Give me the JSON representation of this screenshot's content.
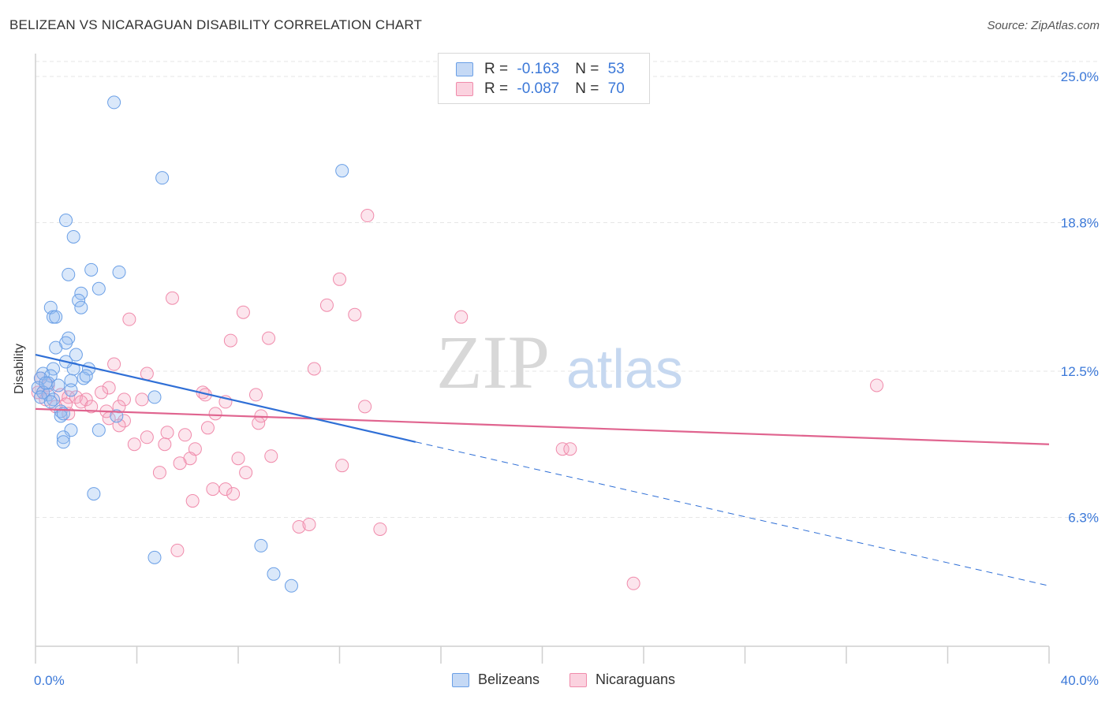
{
  "title": "BELIZEAN VS NICARAGUAN DISABILITY CORRELATION CHART",
  "source": "Source: ZipAtlas.com",
  "watermark": {
    "zip": "ZIP",
    "atlas": "atlas"
  },
  "legend": [
    {
      "r_label": "R = ",
      "r_value": "-0.163",
      "n_label": "N = ",
      "n_value": "53",
      "color": "#6a9fe6"
    },
    {
      "r_label": "R = ",
      "r_value": "-0.087",
      "n_label": "N = ",
      "n_value": "70",
      "color": "#f08bab"
    }
  ],
  "chart_data": {
    "type": "scatter",
    "title": "BELIZEAN VS NICARAGUAN DISABILITY CORRELATION CHART",
    "ylabel": "Disability",
    "xlim": [
      0,
      40
    ],
    "ylim": [
      0,
      25
    ],
    "x_tick_labels": [
      "0.0%",
      "40.0%"
    ],
    "y_ticks": [
      6.3,
      12.5,
      18.8,
      25.0
    ],
    "y_tick_labels": [
      "6.3%",
      "12.5%",
      "18.8%",
      "25.0%"
    ],
    "grid": true,
    "legend_position": "top-center",
    "series": [
      {
        "name": "Belizeans",
        "color": "#6a9fe6",
        "line_color": "#2f6fd6",
        "trend": {
          "x": [
            0,
            15
          ],
          "y": [
            13.2,
            9.5
          ],
          "dashed_to": [
            40,
            3.4
          ]
        },
        "points": [
          [
            3.1,
            23.9
          ],
          [
            5.0,
            20.7
          ],
          [
            12.1,
            21.0
          ],
          [
            1.2,
            18.9
          ],
          [
            1.5,
            18.2
          ],
          [
            1.3,
            16.6
          ],
          [
            2.2,
            16.8
          ],
          [
            3.3,
            16.7
          ],
          [
            1.8,
            15.8
          ],
          [
            2.5,
            16.0
          ],
          [
            1.7,
            15.5
          ],
          [
            1.8,
            15.2
          ],
          [
            0.6,
            15.2
          ],
          [
            0.7,
            14.8
          ],
          [
            0.8,
            14.8
          ],
          [
            1.3,
            13.9
          ],
          [
            1.2,
            13.7
          ],
          [
            0.8,
            13.5
          ],
          [
            1.6,
            13.2
          ],
          [
            0.7,
            12.6
          ],
          [
            1.5,
            12.6
          ],
          [
            2.1,
            12.6
          ],
          [
            0.3,
            12.4
          ],
          [
            0.6,
            12.3
          ],
          [
            0.2,
            12.2
          ],
          [
            0.5,
            12.0
          ],
          [
            0.9,
            11.9
          ],
          [
            1.4,
            12.1
          ],
          [
            1.9,
            12.2
          ],
          [
            2.0,
            12.3
          ],
          [
            0.1,
            11.8
          ],
          [
            0.3,
            11.6
          ],
          [
            0.5,
            11.5
          ],
          [
            0.2,
            11.4
          ],
          [
            0.7,
            11.3
          ],
          [
            1.4,
            11.7
          ],
          [
            4.7,
            11.4
          ],
          [
            1.0,
            10.8
          ],
          [
            1.0,
            10.6
          ],
          [
            1.1,
            10.7
          ],
          [
            3.2,
            10.6
          ],
          [
            1.4,
            10.0
          ],
          [
            2.5,
            10.0
          ],
          [
            1.1,
            9.7
          ],
          [
            1.1,
            9.5
          ],
          [
            2.3,
            7.3
          ],
          [
            4.7,
            4.6
          ],
          [
            8.9,
            5.1
          ],
          [
            9.4,
            3.9
          ],
          [
            10.1,
            3.4
          ],
          [
            0.4,
            12.0
          ],
          [
            0.6,
            11.2
          ],
          [
            1.2,
            12.9
          ]
        ]
      },
      {
        "name": "Nicaraguans",
        "color": "#f08bab",
        "line_color": "#e0648f",
        "trend": {
          "x": [
            0,
            40
          ],
          "y": [
            10.9,
            9.4
          ]
        },
        "points": [
          [
            13.1,
            19.1
          ],
          [
            12.0,
            16.4
          ],
          [
            5.4,
            15.6
          ],
          [
            11.5,
            15.3
          ],
          [
            8.2,
            15.0
          ],
          [
            12.6,
            14.9
          ],
          [
            16.8,
            14.8
          ],
          [
            3.7,
            14.7
          ],
          [
            7.7,
            13.8
          ],
          [
            9.2,
            13.9
          ],
          [
            3.1,
            12.8
          ],
          [
            11.0,
            12.6
          ],
          [
            4.4,
            12.4
          ],
          [
            33.2,
            11.9
          ],
          [
            0.2,
            12.2
          ],
          [
            0.5,
            11.9
          ],
          [
            0.3,
            11.6
          ],
          [
            1.0,
            11.5
          ],
          [
            1.3,
            11.4
          ],
          [
            1.6,
            11.4
          ],
          [
            2.0,
            11.3
          ],
          [
            2.9,
            11.8
          ],
          [
            2.6,
            11.6
          ],
          [
            3.5,
            11.3
          ],
          [
            4.2,
            11.3
          ],
          [
            6.6,
            11.6
          ],
          [
            7.5,
            11.2
          ],
          [
            8.7,
            11.5
          ],
          [
            0.1,
            11.6
          ],
          [
            0.4,
            11.3
          ],
          [
            1.2,
            11.1
          ],
          [
            1.8,
            11.2
          ],
          [
            2.2,
            11.0
          ],
          [
            2.8,
            10.8
          ],
          [
            13.0,
            11.0
          ],
          [
            3.5,
            10.4
          ],
          [
            3.3,
            10.2
          ],
          [
            2.9,
            10.5
          ],
          [
            1.3,
            10.7
          ],
          [
            0.8,
            11.0
          ],
          [
            7.1,
            10.7
          ],
          [
            8.9,
            10.6
          ],
          [
            8.8,
            10.3
          ],
          [
            6.8,
            10.1
          ],
          [
            5.2,
            9.9
          ],
          [
            5.9,
            9.8
          ],
          [
            4.4,
            9.7
          ],
          [
            3.9,
            9.4
          ],
          [
            5.1,
            9.4
          ],
          [
            6.3,
            9.2
          ],
          [
            6.1,
            8.8
          ],
          [
            8.0,
            8.8
          ],
          [
            9.3,
            8.9
          ],
          [
            5.7,
            8.6
          ],
          [
            12.1,
            8.5
          ],
          [
            4.9,
            8.2
          ],
          [
            8.3,
            8.2
          ],
          [
            20.8,
            9.2
          ],
          [
            21.1,
            9.2
          ],
          [
            7.0,
            7.5
          ],
          [
            7.5,
            7.5
          ],
          [
            7.8,
            7.3
          ],
          [
            6.2,
            7.0
          ],
          [
            10.4,
            5.9
          ],
          [
            10.8,
            6.0
          ],
          [
            13.6,
            5.8
          ],
          [
            5.6,
            4.9
          ],
          [
            23.6,
            3.5
          ],
          [
            6.7,
            11.5
          ],
          [
            3.3,
            11.0
          ]
        ]
      }
    ]
  }
}
